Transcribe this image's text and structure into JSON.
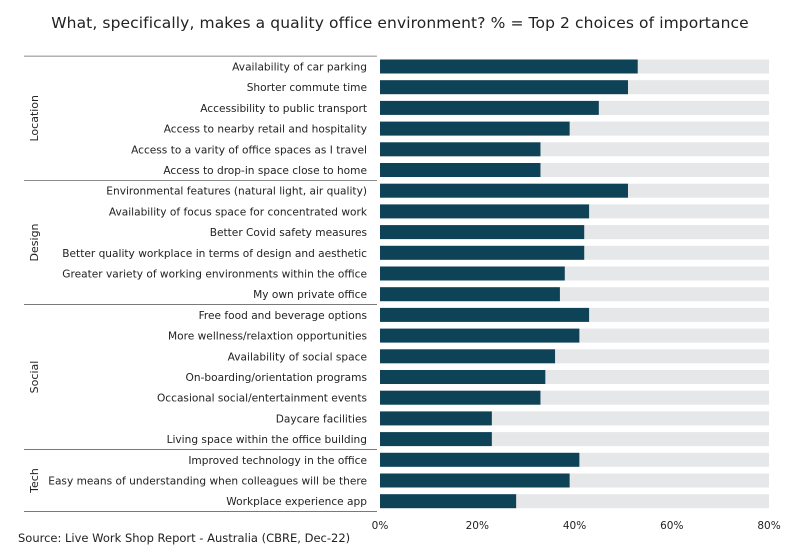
{
  "title": "What, specifically, makes a quality office environment? % = Top 2 choices of importance",
  "source": "Source: Live Work Shop Report - Australia (CBRE, Dec-22)",
  "colors": {
    "bar": "#0e4257",
    "background_bar": "#e6e7e8",
    "divider": "#666666"
  },
  "chart_data": {
    "type": "bar",
    "orientation": "horizontal",
    "title": "What, specifically, makes a quality office environment? % = Top 2 choices of importance",
    "xlabel": "",
    "ylabel": "",
    "xlim": [
      0,
      80
    ],
    "x_ticks": [
      "0%",
      "20%",
      "40%",
      "60%",
      "80%"
    ],
    "grid": false,
    "groups": [
      {
        "name": "Location",
        "categories": [
          "Availability of car parking",
          "Shorter commute time",
          "Accessibility to public transport",
          "Access to nearby retail and hospitality",
          "Access to a varity of office spaces as I travel",
          "Access to drop-in space close to home"
        ],
        "values": [
          53,
          51,
          45,
          39,
          33,
          33
        ]
      },
      {
        "name": "Design",
        "categories": [
          "Environmental features (natural light, air quality)",
          "Availability of focus space for concentrated work",
          "Better Covid safety measures",
          "Better quality workplace in terms of design and aesthetic",
          "Greater variety of working environments within the office",
          "My own private office"
        ],
        "values": [
          51,
          43,
          42,
          42,
          38,
          37
        ]
      },
      {
        "name": "Social",
        "categories": [
          "Free food and beverage options",
          "More wellness/relaxtion opportunities",
          "Availability of social space",
          "On-boarding/orientation programs",
          "Occasional social/entertainment events",
          "Daycare facilities",
          "Living space within the office building"
        ],
        "values": [
          43,
          41,
          36,
          34,
          33,
          23,
          23
        ]
      },
      {
        "name": "Tech",
        "categories": [
          "Improved technology in the office",
          "Easy means of understanding when colleagues will be there",
          "Workplace experience app"
        ],
        "values": [
          41,
          39,
          28
        ]
      }
    ]
  }
}
